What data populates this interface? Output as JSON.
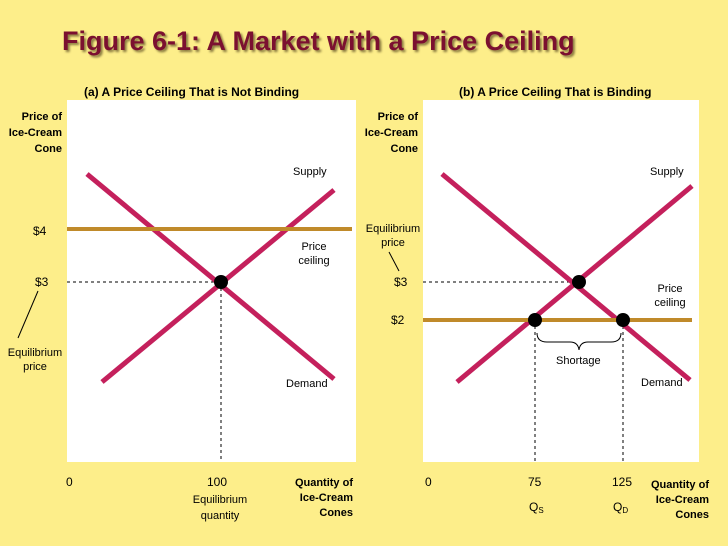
{
  "title": "Figure 6-1: A Market with a Price Ceiling",
  "colors": {
    "background": "#FDEE8A",
    "title": "#7B1030",
    "curve": "#C4205C",
    "ceiling": "#C08A2A",
    "plot": "#FFFFFF"
  },
  "panel_a": {
    "heading": "(a) A Price Ceiling That is Not Binding",
    "y_axis_label": [
      "Price of",
      "Ice-Cream",
      "Cone"
    ],
    "x_axis_label": [
      "Quantity of",
      "Ice-Cream",
      "Cones"
    ],
    "origin": "0",
    "price_ceiling_tick": "$4",
    "equilibrium_price_tick": "$3",
    "equilibrium_quantity_tick": "100",
    "supply_label": "Supply",
    "demand_label": "Demand",
    "ceiling_label": [
      "Price",
      "ceiling"
    ],
    "eq_price_label": [
      "Equilibrium",
      "price"
    ],
    "eq_quantity_label": [
      "Equilibrium",
      "quantity"
    ]
  },
  "panel_b": {
    "heading": "(b) A Price Ceiling That is Binding",
    "y_axis_label": [
      "Price of",
      "Ice-Cream",
      "Cone"
    ],
    "x_axis_label": [
      "Quantity of",
      "Ice-Cream",
      "Cones"
    ],
    "origin": "0",
    "equilibrium_price_tick": "$3",
    "price_ceiling_tick": "$2",
    "qs_tick": "75",
    "qd_tick": "125",
    "qs_letter": "Q",
    "qs_sub": "S",
    "qd_letter": "Q",
    "qd_sub": "D",
    "supply_label": "Supply",
    "demand_label": "Demand",
    "ceiling_label": [
      "Price",
      "ceiling"
    ],
    "eq_price_label": [
      "Equilibrium",
      "price"
    ],
    "shortage_label": "Shortage"
  }
}
